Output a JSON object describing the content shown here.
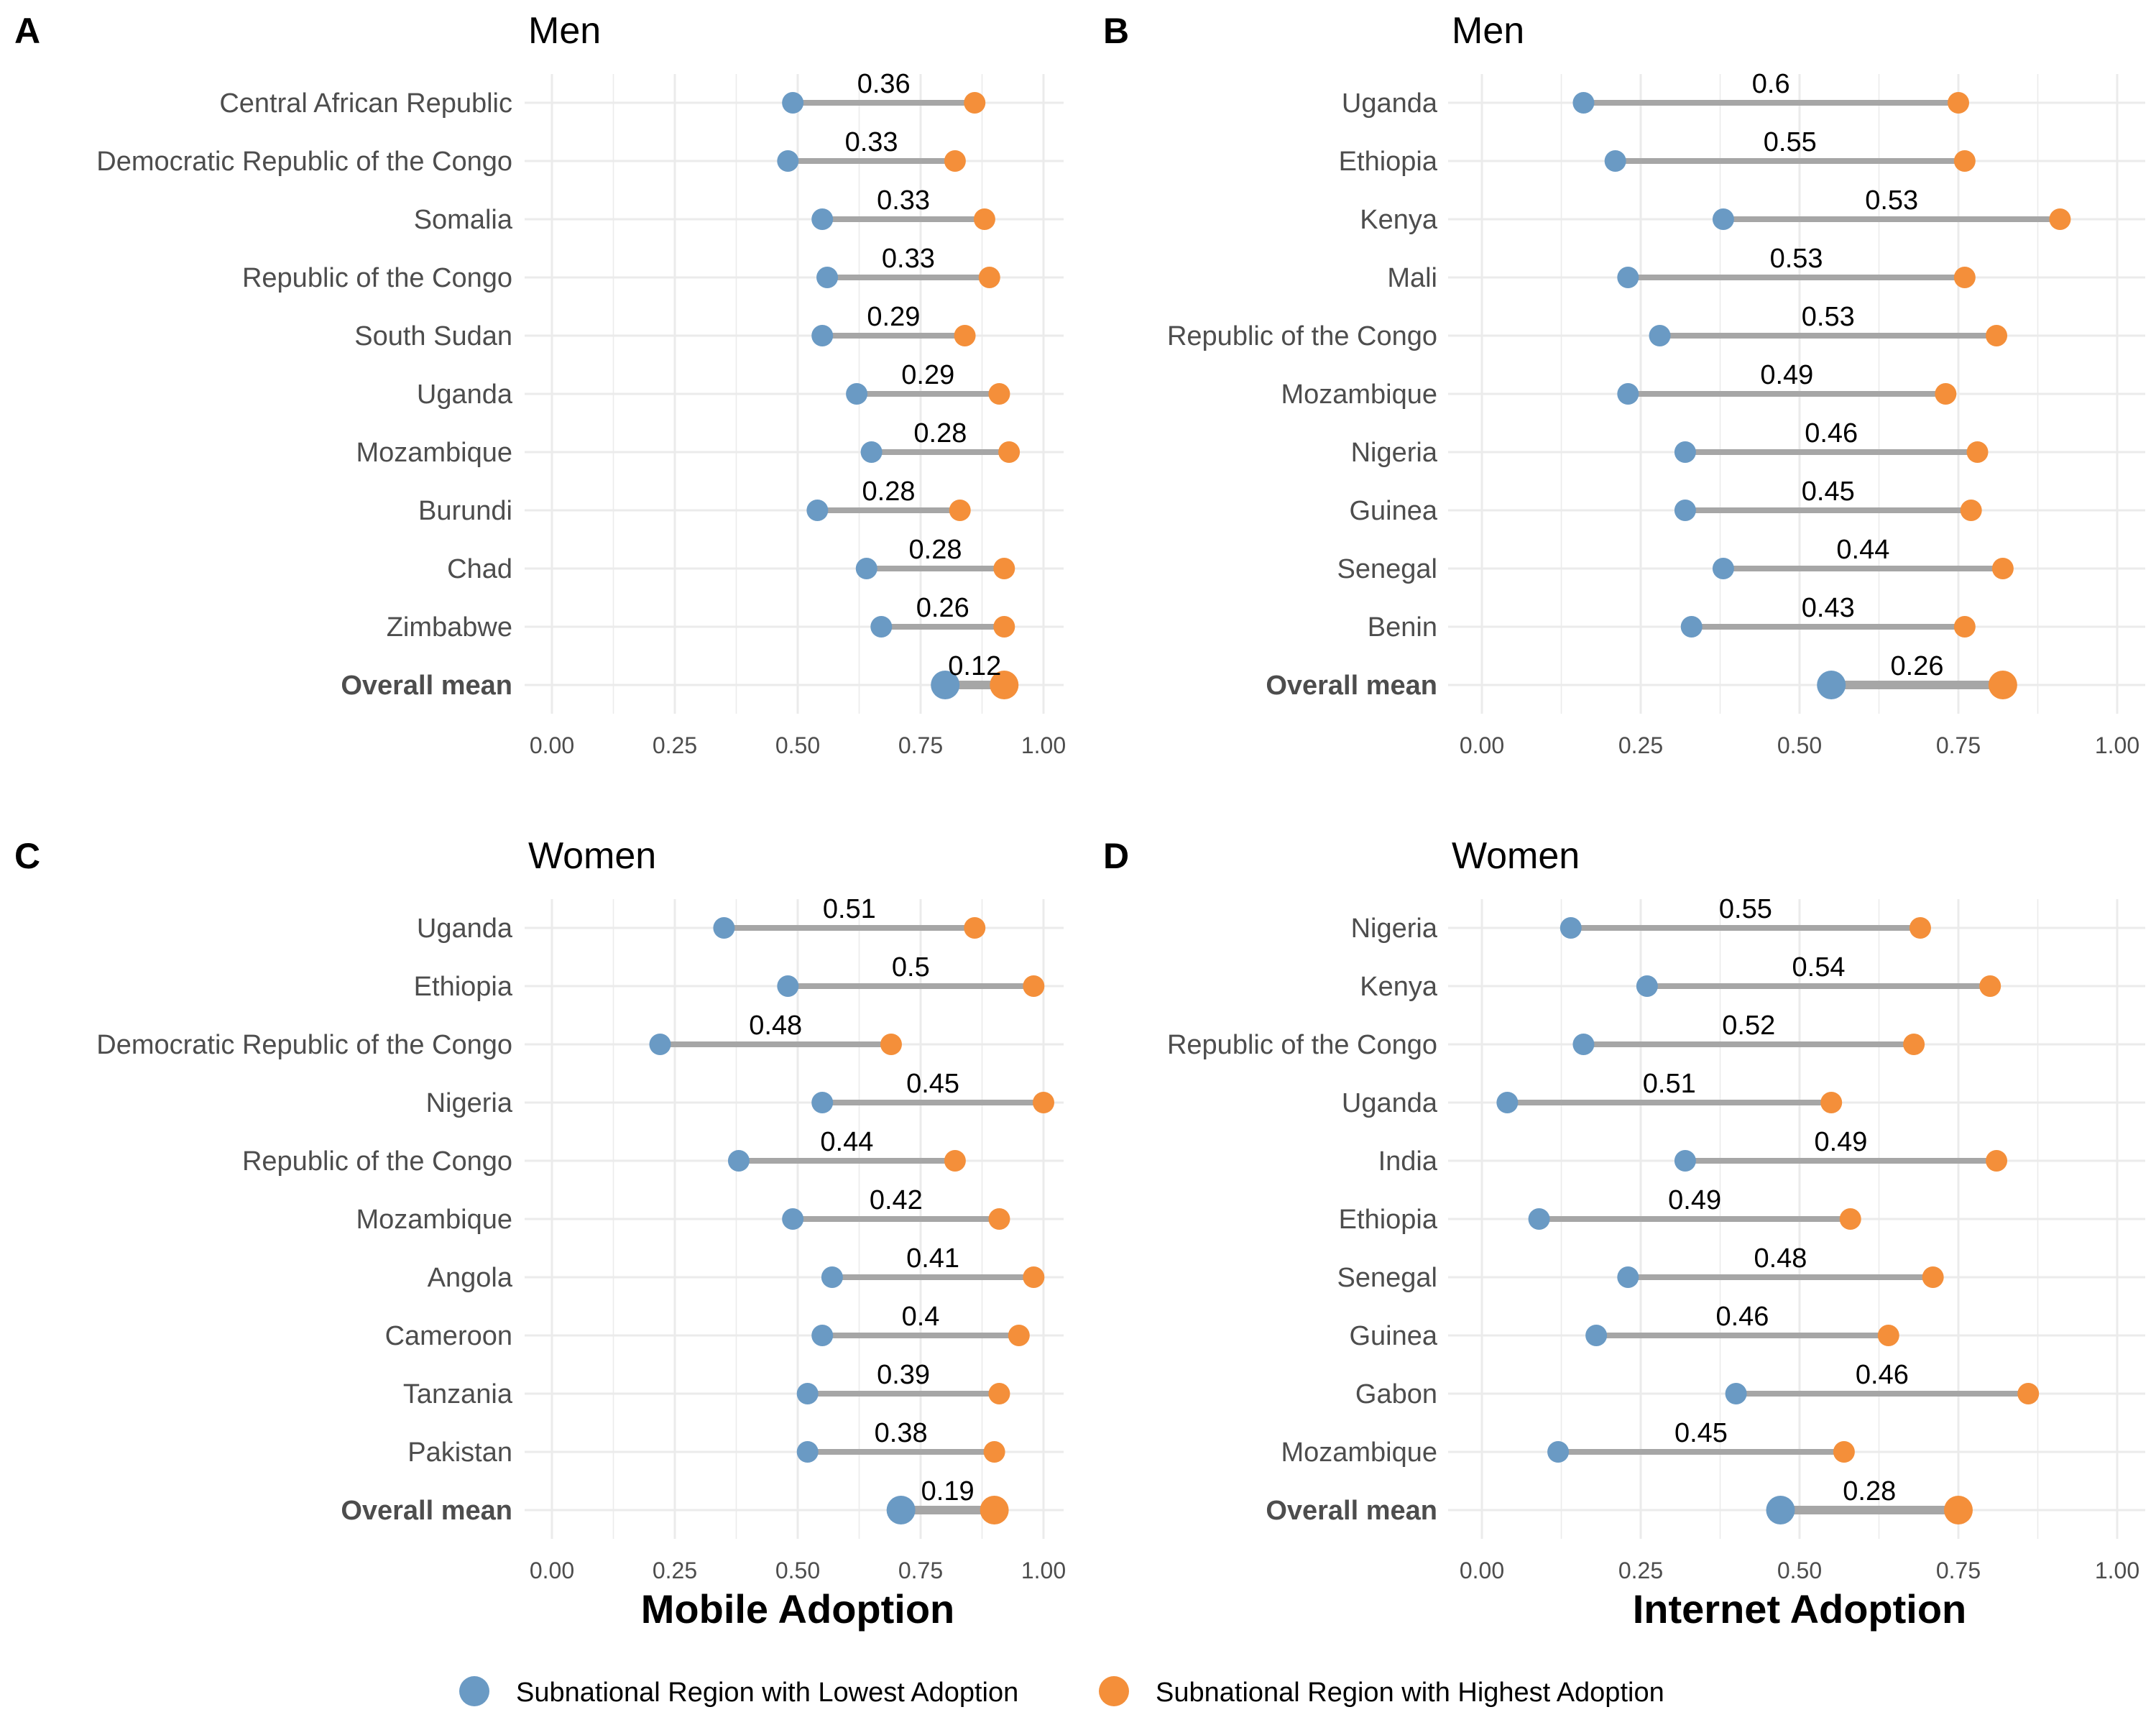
{
  "colors": {
    "low": "#6a9ac4",
    "high": "#f48f3a",
    "segment": "#a6a6a6",
    "grid": "#ebebeb"
  },
  "chart_data": [
    {
      "type": "dumbbell",
      "panel": "A",
      "title": "Men",
      "xlim": [
        0,
        1
      ],
      "x_ticks": [
        "0.00",
        "0.25",
        "0.50",
        "0.75",
        "1.00"
      ],
      "rows": [
        {
          "label": "Central African Republic",
          "low": 0.49,
          "high": 0.86,
          "gap": "0.36"
        },
        {
          "label": "Democratic Republic of the Congo",
          "low": 0.48,
          "high": 0.82,
          "gap": "0.33"
        },
        {
          "label": "Somalia",
          "low": 0.55,
          "high": 0.88,
          "gap": "0.33"
        },
        {
          "label": "Republic of the Congo",
          "low": 0.56,
          "high": 0.89,
          "gap": "0.33"
        },
        {
          "label": "South Sudan",
          "low": 0.55,
          "high": 0.84,
          "gap": "0.29"
        },
        {
          "label": "Uganda",
          "low": 0.62,
          "high": 0.91,
          "gap": "0.29"
        },
        {
          "label": "Mozambique",
          "low": 0.65,
          "high": 0.93,
          "gap": "0.28"
        },
        {
          "label": "Burundi",
          "low": 0.54,
          "high": 0.83,
          "gap": "0.28"
        },
        {
          "label": "Chad",
          "low": 0.64,
          "high": 0.92,
          "gap": "0.28"
        },
        {
          "label": "Zimbabwe",
          "low": 0.67,
          "high": 0.92,
          "gap": "0.26"
        },
        {
          "label": "Overall mean",
          "low": 0.8,
          "high": 0.92,
          "gap": "0.12",
          "is_mean": true
        }
      ]
    },
    {
      "type": "dumbbell",
      "panel": "B",
      "title": "Men",
      "xlim": [
        0,
        1
      ],
      "x_ticks": [
        "0.00",
        "0.25",
        "0.50",
        "0.75",
        "1.00"
      ],
      "rows": [
        {
          "label": "Uganda",
          "low": 0.16,
          "high": 0.75,
          "gap": "0.6"
        },
        {
          "label": "Ethiopia",
          "low": 0.21,
          "high": 0.76,
          "gap": "0.55"
        },
        {
          "label": "Kenya",
          "low": 0.38,
          "high": 0.91,
          "gap": "0.53"
        },
        {
          "label": "Mali",
          "low": 0.23,
          "high": 0.76,
          "gap": "0.53"
        },
        {
          "label": "Republic of the Congo",
          "low": 0.28,
          "high": 0.81,
          "gap": "0.53"
        },
        {
          "label": "Mozambique",
          "low": 0.23,
          "high": 0.73,
          "gap": "0.49"
        },
        {
          "label": "Nigeria",
          "low": 0.32,
          "high": 0.78,
          "gap": "0.46"
        },
        {
          "label": "Guinea",
          "low": 0.32,
          "high": 0.77,
          "gap": "0.45"
        },
        {
          "label": "Senegal",
          "low": 0.38,
          "high": 0.82,
          "gap": "0.44"
        },
        {
          "label": "Benin",
          "low": 0.33,
          "high": 0.76,
          "gap": "0.43"
        },
        {
          "label": "Overall mean",
          "low": 0.55,
          "high": 0.82,
          "gap": "0.26",
          "is_mean": true
        }
      ]
    },
    {
      "type": "dumbbell",
      "panel": "C",
      "title": "Women",
      "xlim": [
        0,
        1
      ],
      "x_ticks": [
        "0.00",
        "0.25",
        "0.50",
        "0.75",
        "1.00"
      ],
      "xlabel": "Mobile Adoption",
      "rows": [
        {
          "label": "Uganda",
          "low": 0.35,
          "high": 0.86,
          "gap": "0.51"
        },
        {
          "label": "Ethiopia",
          "low": 0.48,
          "high": 0.98,
          "gap": "0.5"
        },
        {
          "label": "Democratic Republic of the Congo",
          "low": 0.22,
          "high": 0.69,
          "gap": "0.48"
        },
        {
          "label": "Nigeria",
          "low": 0.55,
          "high": 1.0,
          "gap": "0.45"
        },
        {
          "label": "Republic of the Congo",
          "low": 0.38,
          "high": 0.82,
          "gap": "0.44"
        },
        {
          "label": "Mozambique",
          "low": 0.49,
          "high": 0.91,
          "gap": "0.42"
        },
        {
          "label": "Angola",
          "low": 0.57,
          "high": 0.98,
          "gap": "0.41"
        },
        {
          "label": "Cameroon",
          "low": 0.55,
          "high": 0.95,
          "gap": "0.4"
        },
        {
          "label": "Tanzania",
          "low": 0.52,
          "high": 0.91,
          "gap": "0.39"
        },
        {
          "label": "Pakistan",
          "low": 0.52,
          "high": 0.9,
          "gap": "0.38"
        },
        {
          "label": "Overall mean",
          "low": 0.71,
          "high": 0.9,
          "gap": "0.19",
          "is_mean": true
        }
      ]
    },
    {
      "type": "dumbbell",
      "panel": "D",
      "title": "Women",
      "xlim": [
        0,
        1
      ],
      "x_ticks": [
        "0.00",
        "0.25",
        "0.50",
        "0.75",
        "1.00"
      ],
      "xlabel": "Internet Adoption",
      "rows": [
        {
          "label": "Nigeria",
          "low": 0.14,
          "high": 0.69,
          "gap": "0.55"
        },
        {
          "label": "Kenya",
          "low": 0.26,
          "high": 0.8,
          "gap": "0.54"
        },
        {
          "label": "Republic of the Congo",
          "low": 0.16,
          "high": 0.68,
          "gap": "0.52"
        },
        {
          "label": "Uganda",
          "low": 0.04,
          "high": 0.55,
          "gap": "0.51"
        },
        {
          "label": "India",
          "low": 0.32,
          "high": 0.81,
          "gap": "0.49"
        },
        {
          "label": "Ethiopia",
          "low": 0.09,
          "high": 0.58,
          "gap": "0.49"
        },
        {
          "label": "Senegal",
          "low": 0.23,
          "high": 0.71,
          "gap": "0.48"
        },
        {
          "label": "Guinea",
          "low": 0.18,
          "high": 0.64,
          "gap": "0.46"
        },
        {
          "label": "Gabon",
          "low": 0.4,
          "high": 0.86,
          "gap": "0.46"
        },
        {
          "label": "Mozambique",
          "low": 0.12,
          "high": 0.57,
          "gap": "0.45"
        },
        {
          "label": "Overall mean",
          "low": 0.47,
          "high": 0.75,
          "gap": "0.28",
          "is_mean": true
        }
      ]
    }
  ],
  "legend": {
    "position": "bottom",
    "items": [
      {
        "key": "low",
        "label": "Subnational Region with Lowest Adoption"
      },
      {
        "key": "high",
        "label": "Subnational Region with Highest Adoption"
      }
    ]
  }
}
